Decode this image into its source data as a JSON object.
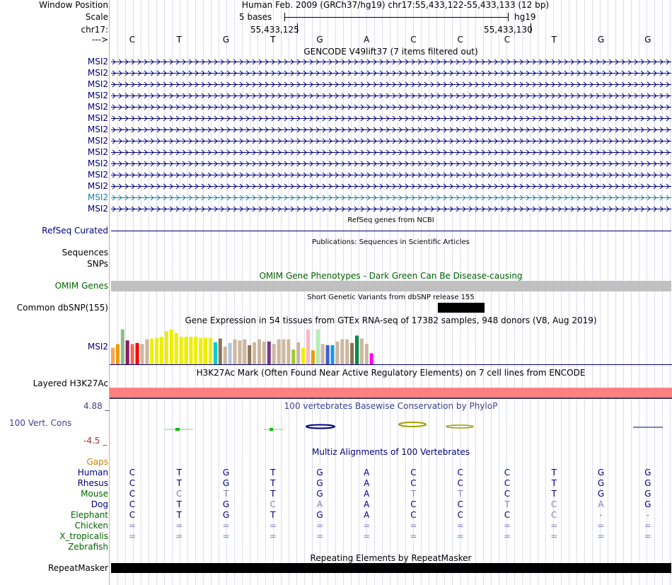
{
  "header": {
    "window_position_label": "Window Position",
    "window_position_value": "Human Feb. 2009 (GRCh37/hg19)    chr17:55,433,122-55,433,133 (12 bp)",
    "scale_label": "Scale",
    "scale_bases": "5 bases",
    "scale_db": "hg19",
    "chr_label": "chr17:",
    "coord_left": "55,433,125",
    "coord_right": "55,433,130",
    "arrow_label": "--->"
  },
  "reference_bases": [
    "C",
    "T",
    "G",
    "T",
    "G",
    "A",
    "C",
    "C",
    "C",
    "T",
    "G",
    "G"
  ],
  "gencode": {
    "title": "GENCODE V49lift37 (7 items filtered out)",
    "items": [
      "MSI2",
      "MSI2",
      "MSI2",
      "MSI2",
      "MSI2",
      "MSI2",
      "MSI2",
      "MSI2",
      "MSI2",
      "MSI2",
      "MSI2",
      "MSI2",
      "MSI2",
      "MSI2"
    ],
    "highlight_index": 12
  },
  "refseq": {
    "title": "RefSeq genes from NCBI",
    "label": "RefSeq Curated"
  },
  "publications": {
    "title": "Publications: Sequences in Scientific Articles",
    "label1": "Sequences",
    "label2": "SNPs"
  },
  "omim": {
    "title": "OMIM Gene Phenotypes - Dark Green Can Be Disease-causing",
    "label": "OMIM Genes"
  },
  "dbsnp": {
    "title": "Short Genetic Variants from dbSNP release 155",
    "label": "Common dbSNP(155)"
  },
  "gtex": {
    "title": "Gene Expression in 54 tissues from GTEx RNA-seq of 17382 samples, 948 donors (V8, Aug 2019)",
    "label": "MSI2",
    "bars": [
      {
        "v": 0.45,
        "c": "#ffa54f"
      },
      {
        "v": 0.55,
        "c": "#ee9a00"
      },
      {
        "v": 0.95,
        "c": "#8fbc8f"
      },
      {
        "v": 0.65,
        "c": "#8b1c62"
      },
      {
        "v": 0.55,
        "c": "#ee6a50"
      },
      {
        "v": 0.58,
        "c": "#ff0000"
      },
      {
        "v": 0.55,
        "c": "#cdb79e"
      },
      {
        "v": 0.68,
        "c": "#cdb79e"
      },
      {
        "v": 0.7,
        "c": "#eeee00"
      },
      {
        "v": 0.72,
        "c": "#eeee00"
      },
      {
        "v": 0.75,
        "c": "#eeee00"
      },
      {
        "v": 0.9,
        "c": "#eeee00"
      },
      {
        "v": 0.95,
        "c": "#eeee00"
      },
      {
        "v": 0.85,
        "c": "#eeee00"
      },
      {
        "v": 0.75,
        "c": "#eeee00"
      },
      {
        "v": 0.75,
        "c": "#eeee00"
      },
      {
        "v": 0.75,
        "c": "#eeee00"
      },
      {
        "v": 0.75,
        "c": "#eeee00"
      },
      {
        "v": 0.72,
        "c": "#eeee00"
      },
      {
        "v": 0.72,
        "c": "#eeee00"
      },
      {
        "v": 0.72,
        "c": "#eeee00"
      },
      {
        "v": 0.6,
        "c": "#00cdcd"
      },
      {
        "v": 0.7,
        "c": "#8b7355"
      },
      {
        "v": 0.48,
        "c": "#cdb79e"
      },
      {
        "v": 0.58,
        "c": "#b0c4de"
      },
      {
        "v": 0.68,
        "c": "#cdb79e"
      },
      {
        "v": 0.65,
        "c": "#cdb79e"
      },
      {
        "v": 0.68,
        "c": "#cdb79e"
      },
      {
        "v": 0.52,
        "c": "#8b7355"
      },
      {
        "v": 0.6,
        "c": "#cdb79e"
      },
      {
        "v": 0.68,
        "c": "#cdb79e"
      },
      {
        "v": 0.62,
        "c": "#cdb79e"
      },
      {
        "v": 0.62,
        "c": "#7a378b"
      },
      {
        "v": 0.55,
        "c": "#cdb79e"
      },
      {
        "v": 0.68,
        "c": "#cdb79e"
      },
      {
        "v": 0.68,
        "c": "#cdb79e"
      },
      {
        "v": 0.68,
        "c": "#cdb79e"
      },
      {
        "v": 0.4,
        "c": "#9acd32"
      },
      {
        "v": 0.6,
        "c": "#cdb79e"
      },
      {
        "v": 0.45,
        "c": "#eeee00"
      },
      {
        "v": 0.95,
        "c": "#ffb6c1"
      },
      {
        "v": 0.38,
        "c": "#ee9a00"
      },
      {
        "v": 0.95,
        "c": "#b4eeb4"
      },
      {
        "v": 0.55,
        "c": "#cdb79e"
      },
      {
        "v": 0.52,
        "c": "#3a5fcd"
      },
      {
        "v": 0.52,
        "c": "#1e90ff"
      },
      {
        "v": 0.62,
        "c": "#cdb79e"
      },
      {
        "v": 0.68,
        "c": "#cdb79e"
      },
      {
        "v": 0.68,
        "c": "#cdb79e"
      },
      {
        "v": 0.58,
        "c": "#8b7355"
      },
      {
        "v": 0.78,
        "c": "#008b45"
      },
      {
        "v": 0.7,
        "c": "#cdb79e"
      },
      {
        "v": 0.55,
        "c": "#cdb79e"
      },
      {
        "v": 0.3,
        "c": "#ff00ff"
      }
    ]
  },
  "h3k27ac": {
    "title": "H3K27Ac Mark (Often Found Near Active Regulatory Elements) on 7 cell lines from ENCODE",
    "label": "Layered H3K27Ac"
  },
  "conservation": {
    "title": "100 vertebrates Basewise Conservation by PhyloP",
    "label": "100 Vert. Cons",
    "max": "4.88 _",
    "min": "-4.5 _"
  },
  "multiz": {
    "title": "Multiz Alignments of 100 Vertebrates",
    "gaps_label": "Gaps",
    "species": [
      {
        "name": "Human",
        "color": "#000080",
        "bases": [
          "C",
          "T",
          "G",
          "T",
          "G",
          "A",
          "C",
          "C",
          "C",
          "T",
          "G",
          "G"
        ],
        "faint": []
      },
      {
        "name": "Rhesus",
        "color": "#000080",
        "bases": [
          "C",
          "T",
          "G",
          "T",
          "G",
          "A",
          "C",
          "C",
          "C",
          "T",
          "G",
          "G"
        ],
        "faint": []
      },
      {
        "name": "Mouse",
        "color": "#006400",
        "bases": [
          "C",
          "C",
          "T",
          "T",
          "G",
          "A",
          "T",
          "T",
          "C",
          "T",
          "G",
          "G"
        ],
        "faint": [
          1,
          2,
          6,
          7
        ]
      },
      {
        "name": "Dog",
        "color": "#000080",
        "bases": [
          "C",
          "T",
          "G",
          "C",
          "A",
          "A",
          "C",
          "C",
          "T",
          "C",
          "A",
          "G"
        ],
        "faint": [
          3,
          4,
          8,
          9,
          10
        ]
      },
      {
        "name": "Elephant",
        "color": "#006400",
        "bases": [
          "C",
          "T",
          "G",
          "T",
          "G",
          "A",
          "C",
          "C",
          "C",
          "C",
          "-",
          "-"
        ],
        "faint": [
          9,
          10,
          11
        ]
      },
      {
        "name": "Chicken",
        "color": "#006400",
        "bases": [
          "=",
          "=",
          "=",
          "=",
          "=",
          "=",
          "=",
          "=",
          "=",
          "=",
          "=",
          "="
        ],
        "faint": [
          0,
          1,
          2,
          3,
          4,
          5,
          6,
          7,
          8,
          9,
          10,
          11
        ]
      },
      {
        "name": "X_tropicalis",
        "color": "#006400",
        "bases": [
          "=",
          "=",
          "=",
          "=",
          "=",
          "=",
          "=",
          "=",
          "=",
          "=",
          "=",
          "="
        ],
        "faint": [
          0,
          1,
          2,
          3,
          4,
          5,
          6,
          7,
          8,
          9,
          10,
          11
        ]
      },
      {
        "name": "Zebrafish",
        "color": "#006400",
        "bases": [
          "",
          "",
          "",
          "",
          "",
          "",
          "",
          "",
          "",
          "",
          "",
          ""
        ],
        "faint": []
      }
    ]
  },
  "repeatmasker": {
    "title": "Repeating Elements by RepeatMasker",
    "label": "RepeatMasker"
  },
  "colors": {
    "navy": "#000080",
    "omim_gray": "#c0c0c0",
    "h3k27ac": "#ff8080",
    "cons_blue": "#000080",
    "cons_green": "#00c000",
    "cons_olive": "#a0a000"
  }
}
